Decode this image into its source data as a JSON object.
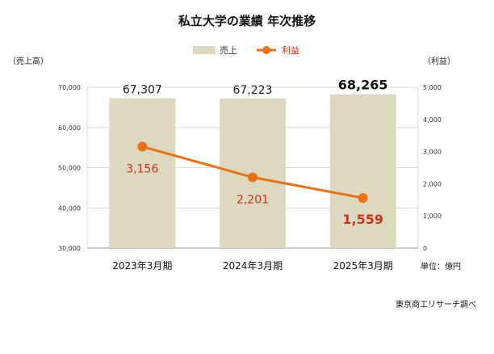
{
  "chart_data": {
    "type": "bar",
    "title": "私立大学の業績 年次推移",
    "categories": [
      "2023年3月期",
      "2024年3月期",
      "2025年3月期"
    ],
    "series": [
      {
        "name": "売上",
        "type": "bar",
        "axis": "left",
        "values": [
          67307,
          67223,
          68265
        ],
        "labels": [
          "67,307",
          "67,223",
          "68,265"
        ]
      },
      {
        "name": "利益",
        "type": "line",
        "axis": "right",
        "values": [
          3156,
          2201,
          1559
        ],
        "labels": [
          "3,156",
          "2,201",
          "1,559"
        ]
      }
    ],
    "y_left": {
      "label": "（売上高）",
      "range": [
        30000,
        70000
      ],
      "ticks": [
        "30,000",
        "40,000",
        "50,000",
        "60,000",
        "70,000"
      ]
    },
    "y_right": {
      "label": "（利益）",
      "range": [
        0,
        5000
      ],
      "ticks": [
        "0",
        "1,000",
        "2,000",
        "3,000",
        "4,000",
        "5,000"
      ]
    },
    "unit_note": "単位：億円",
    "source": "東京商工リサーチ調べ",
    "legend": "top-center",
    "grid": true,
    "colors": {
      "bar": "#ddd8c0",
      "line": "#ed7012",
      "line_label": "#d2321e",
      "grid": "#d9d9d9"
    }
  }
}
